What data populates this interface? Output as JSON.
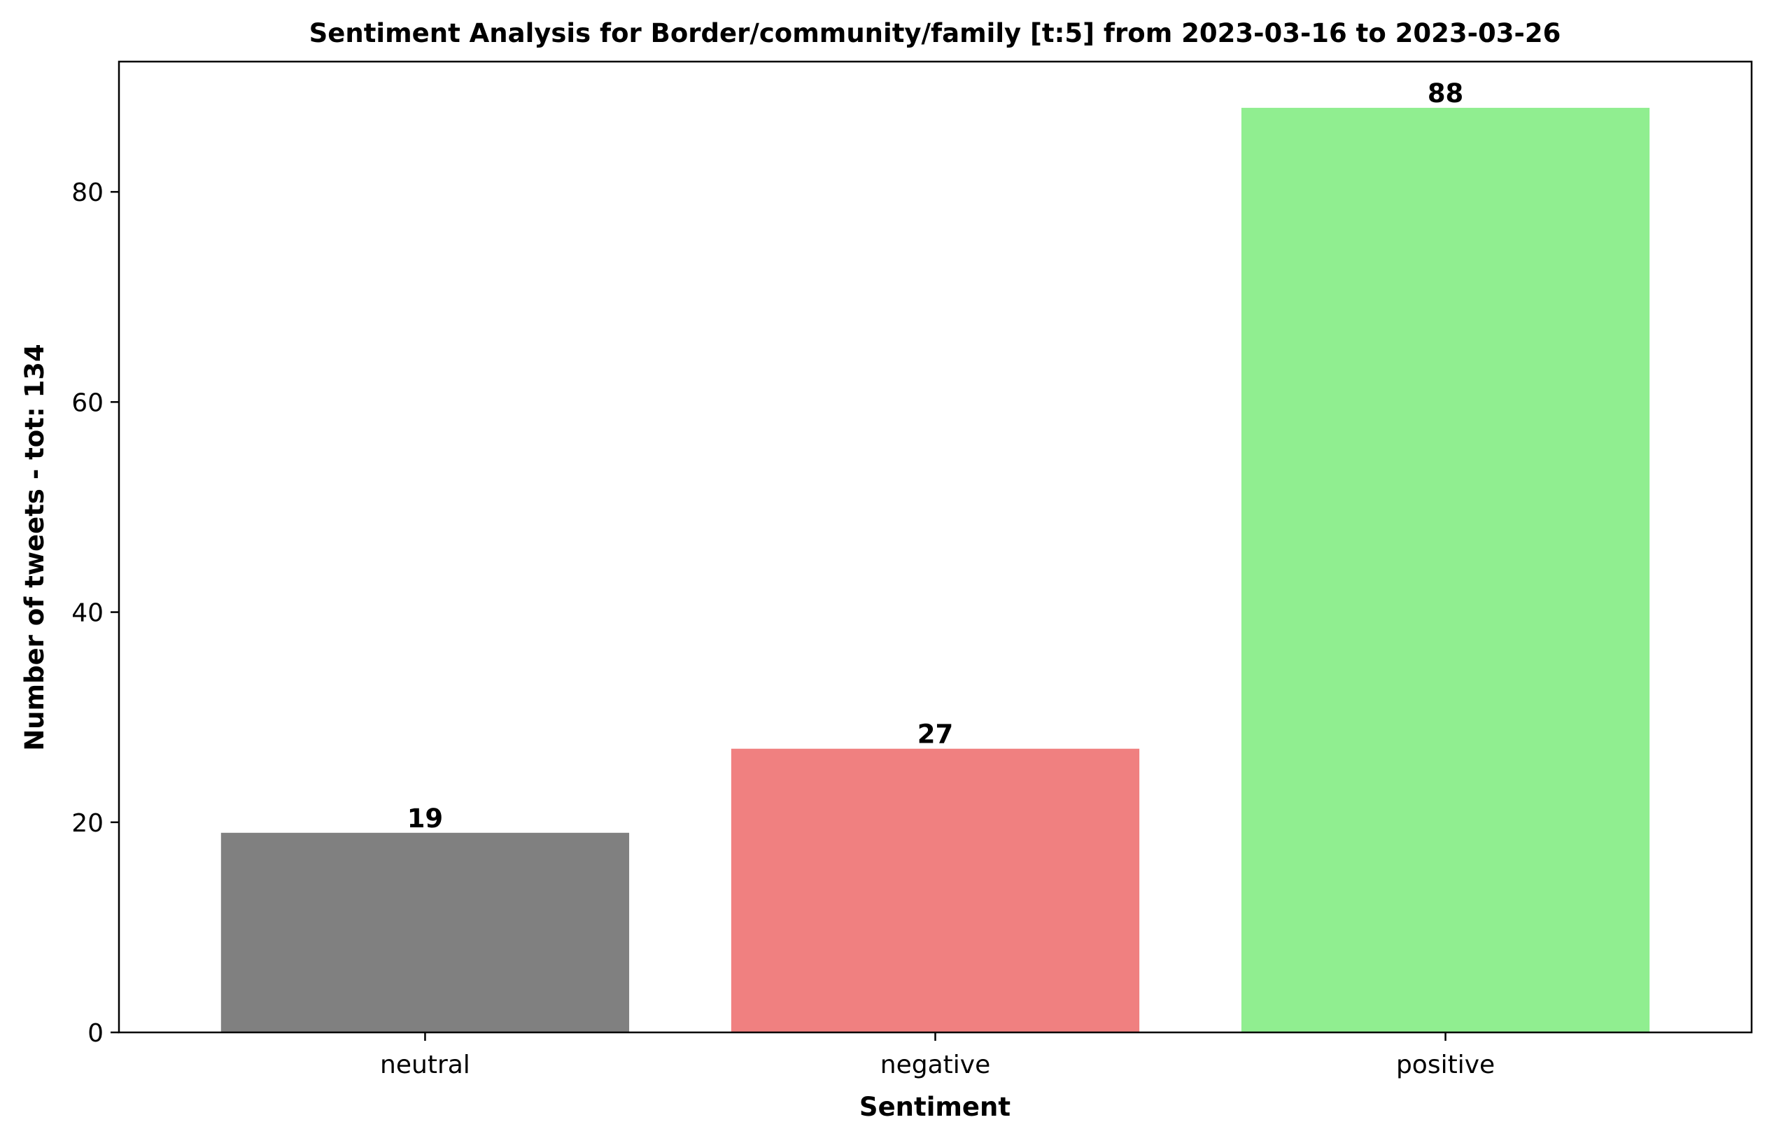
{
  "chart_data": {
    "type": "bar",
    "title": "Sentiment Analysis for Border/community/family [t:5] from 2023-03-16 to 2023-03-26",
    "xlabel": "Sentiment",
    "ylabel": "Number of tweets - tot: 134",
    "categories": [
      "neutral",
      "negative",
      "positive"
    ],
    "values": [
      19,
      27,
      88
    ],
    "colors": [
      "#808080",
      "#f08080",
      "#90ee90"
    ],
    "ylim": [
      0,
      92.4
    ],
    "yticks": [
      0,
      20,
      40,
      60,
      80
    ],
    "grid": false,
    "legend": "none"
  }
}
